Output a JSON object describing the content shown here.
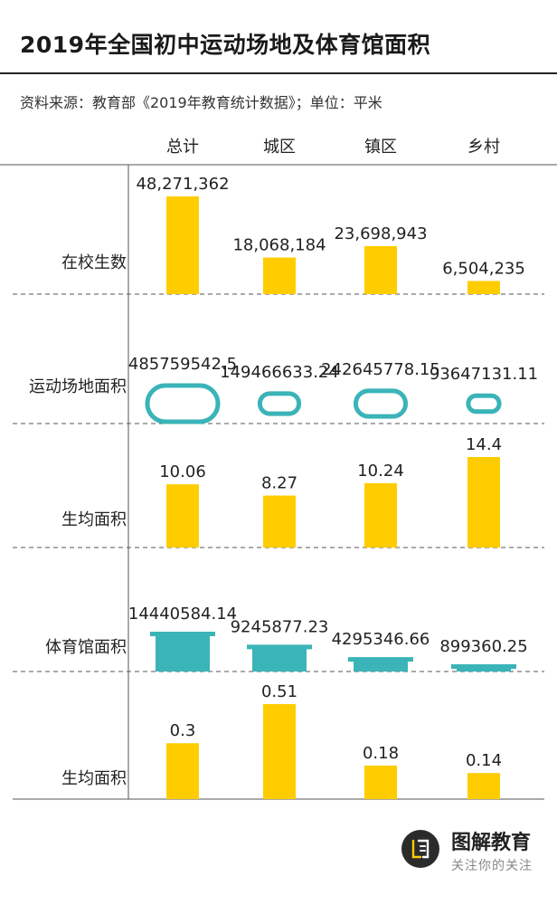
{
  "title": "2019年全国初中运动场地及体育馆面积",
  "source": "资料来源：教育部《2019年教育统计数据》；单位：平米",
  "colors": {
    "yellow": "#FFCC00",
    "teal": "#3AB4B8",
    "text": "#222222",
    "grid": "#555555"
  },
  "chart_data": {
    "type": "bar",
    "categories": [
      "总计",
      "城区",
      "镇区",
      "乡村"
    ],
    "rows": [
      {
        "name": "在校生数",
        "mark": "bar",
        "color": "yellow",
        "labels": [
          "48,271,362",
          "18,068,184",
          "23,698,943",
          "6,504,235"
        ],
        "values": [
          48271362,
          18068184,
          23698943,
          6504235
        ]
      },
      {
        "name": "运动场地面积",
        "mark": "pill",
        "color": "teal",
        "labels": [
          "485759542.5",
          "149466633.24",
          "242645778.15",
          "93647131.11"
        ],
        "values": [
          485759542.5,
          149466633.24,
          242645778.15,
          93647131.11
        ]
      },
      {
        "name": "生均面积",
        "mark": "bar",
        "color": "yellow",
        "labels": [
          "10.06",
          "8.27",
          "10.24",
          "14.4"
        ],
        "values": [
          10.06,
          8.27,
          10.24,
          14.4
        ]
      },
      {
        "name": "体育馆面积",
        "mark": "building",
        "color": "teal",
        "labels": [
          "14440584.14",
          "9245877.23",
          "4295346.66",
          "899360.25"
        ],
        "values": [
          14440584.14,
          9245877.23,
          4295346.66,
          899360.25
        ]
      },
      {
        "name": "生均面积",
        "mark": "bar",
        "color": "yellow",
        "labels": [
          "0.3",
          "0.51",
          "0.18",
          "0.14"
        ],
        "values": [
          0.3,
          0.51,
          0.18,
          0.14
        ]
      }
    ]
  },
  "brand": {
    "name": "图解教育",
    "tagline": "关注你的关注",
    "logo_icon": "book-logo-icon"
  }
}
